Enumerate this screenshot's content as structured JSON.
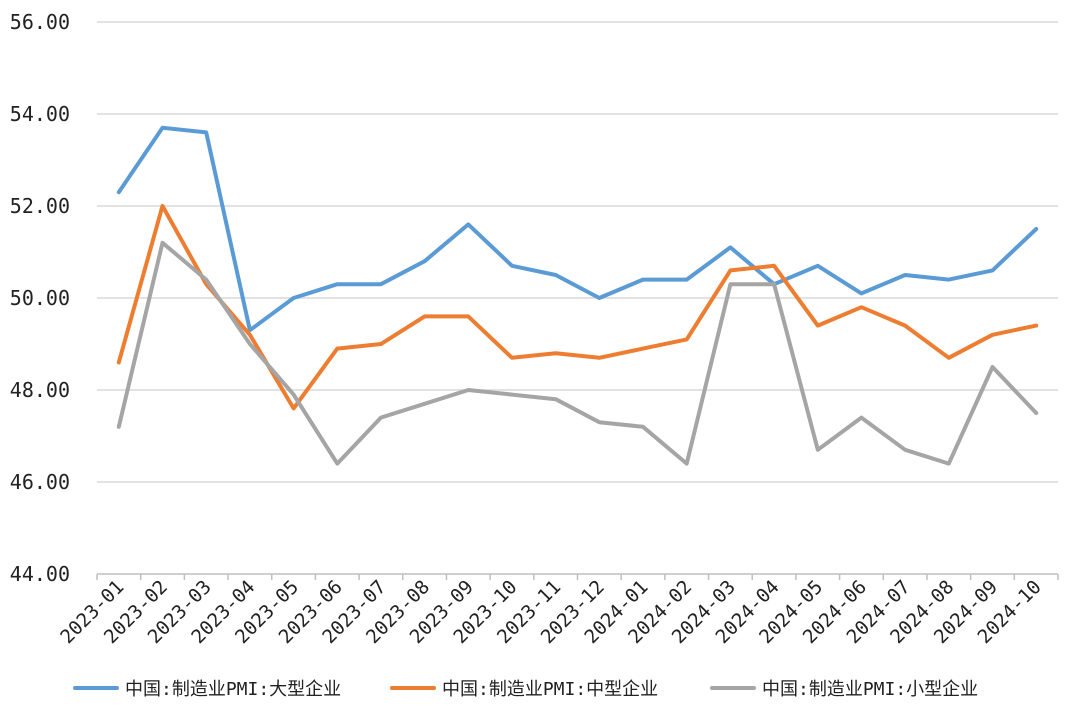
{
  "chart_data": {
    "type": "line",
    "title": "",
    "xlabel": "",
    "ylabel": "",
    "ylim": [
      44,
      56
    ],
    "yticks": [
      "44.00",
      "46.00",
      "48.00",
      "50.00",
      "52.00",
      "54.00",
      "56.00"
    ],
    "grid": true,
    "legend_position": "bottom",
    "categories": [
      "2023-01",
      "2023-02",
      "2023-03",
      "2023-04",
      "2023-05",
      "2023-06",
      "2023-07",
      "2023-08",
      "2023-09",
      "2023-10",
      "2023-11",
      "2023-12",
      "2024-01",
      "2024-02",
      "2024-03",
      "2024-04",
      "2024-05",
      "2024-06",
      "2024-07",
      "2024-08",
      "2024-09",
      "2024-10"
    ],
    "series": [
      {
        "name": "中国:制造业PMI:大型企业",
        "color": "#5B9BD5",
        "values": [
          52.3,
          53.7,
          53.6,
          49.3,
          50.0,
          50.3,
          50.3,
          50.8,
          51.6,
          50.7,
          50.5,
          50.0,
          50.4,
          50.4,
          51.1,
          50.3,
          50.7,
          50.1,
          50.5,
          50.4,
          50.6,
          51.5
        ]
      },
      {
        "name": "中国:制造业PMI:中型企业",
        "color": "#ED7D31",
        "values": [
          48.6,
          52.0,
          50.3,
          49.2,
          47.6,
          48.9,
          49.0,
          49.6,
          49.6,
          48.7,
          48.8,
          48.7,
          48.9,
          49.1,
          50.6,
          50.7,
          49.4,
          49.8,
          49.4,
          48.7,
          49.2,
          49.4
        ]
      },
      {
        "name": "中国:制造业PMI:小型企业",
        "color": "#A5A5A5",
        "values": [
          47.2,
          51.2,
          50.4,
          49.0,
          47.9,
          46.4,
          47.4,
          47.7,
          48.0,
          47.9,
          47.8,
          47.3,
          47.2,
          46.4,
          50.3,
          50.3,
          46.7,
          47.4,
          46.7,
          46.4,
          48.5,
          47.5
        ]
      }
    ]
  }
}
